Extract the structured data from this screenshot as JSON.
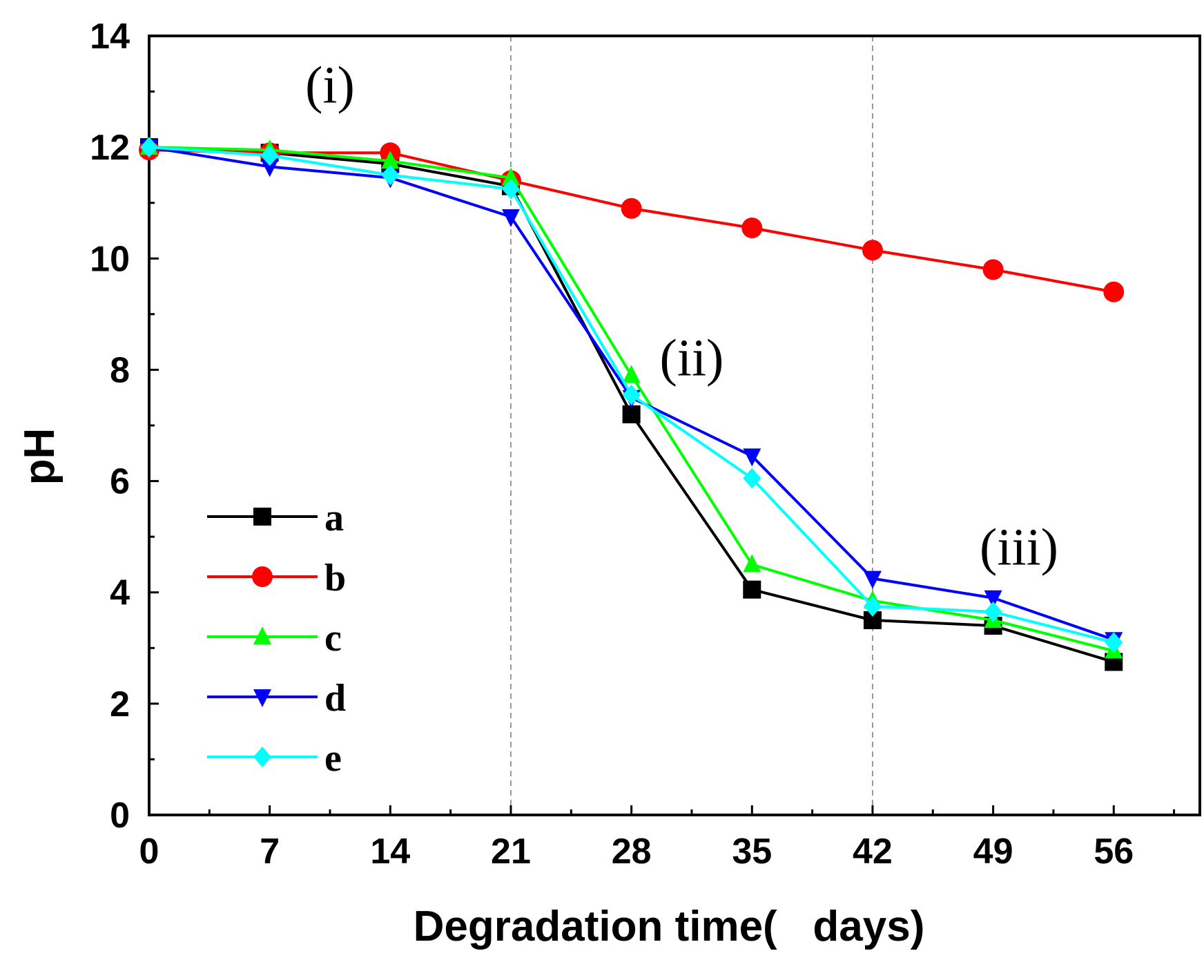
{
  "chart_data": {
    "type": "line",
    "xlabel": "Degradation time(   days)",
    "ylabel": "pH",
    "xlim": [
      0,
      61
    ],
    "ylim": [
      0,
      14
    ],
    "x_ticks": [
      0,
      7,
      14,
      21,
      28,
      35,
      42,
      49,
      56
    ],
    "y_ticks": [
      0,
      2,
      4,
      6,
      8,
      10,
      12,
      14
    ],
    "vertical_reference_lines": [
      21,
      42
    ],
    "x": [
      0,
      7,
      14,
      21,
      28,
      35,
      42,
      49,
      56
    ],
    "series": [
      {
        "name": "a",
        "color": "#000000",
        "marker": "square",
        "values": [
          12.0,
          11.9,
          11.7,
          11.3,
          7.2,
          4.05,
          3.5,
          3.4,
          2.75
        ]
      },
      {
        "name": "b",
        "color": "#ff0000",
        "marker": "circle",
        "values": [
          11.95,
          11.9,
          11.9,
          11.4,
          10.9,
          10.55,
          10.15,
          9.8,
          9.4
        ]
      },
      {
        "name": "c",
        "color": "#00ff00",
        "marker": "triangle-up",
        "values": [
          12.0,
          11.95,
          11.75,
          11.45,
          7.9,
          4.5,
          3.85,
          3.5,
          2.95
        ]
      },
      {
        "name": "d",
        "color": "#0000ff",
        "marker": "triangle-down",
        "values": [
          12.0,
          11.65,
          11.45,
          10.75,
          7.5,
          6.45,
          4.25,
          3.9,
          3.15
        ]
      },
      {
        "name": "e",
        "color": "#00ffff",
        "marker": "diamond",
        "values": [
          12.0,
          11.85,
          11.5,
          11.25,
          7.55,
          6.05,
          3.75,
          3.65,
          3.1
        ]
      }
    ],
    "annotations": [
      {
        "text": "(i)",
        "x": 10.5,
        "y": 12.8
      },
      {
        "text": "(ii)",
        "x": 31.5,
        "y": 7.9
      },
      {
        "text": "(iii)",
        "x": 50.5,
        "y": 4.5
      }
    ],
    "legend": "inside-lower-left",
    "grid": false
  }
}
